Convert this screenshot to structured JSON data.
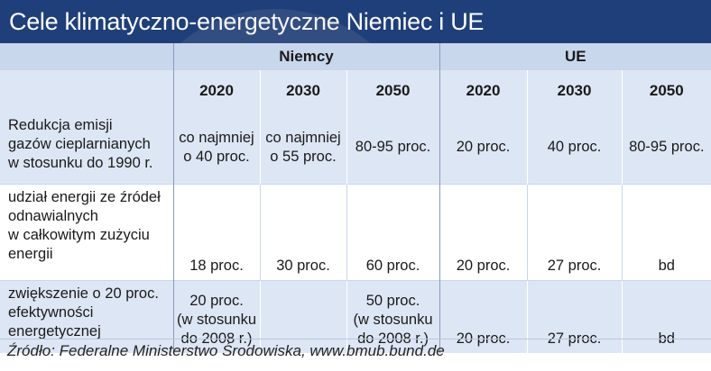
{
  "title": "Cele klimatyczno-energetyczne Niemiec i UE",
  "groups": [
    "Niemcy",
    "UE"
  ],
  "years": [
    "2020",
    "2030",
    "2050",
    "2020",
    "2030",
    "2050"
  ],
  "rows": [
    {
      "label": [
        "Redukcja emisji",
        "gazów cieplarnianych",
        "w stosunku do 1990 r."
      ],
      "values": [
        [
          "co najmniej",
          "o 40 proc."
        ],
        [
          "co najmniej",
          "o 55 proc."
        ],
        [
          "80-95 proc."
        ],
        [
          "20 proc."
        ],
        [
          "40 proc."
        ],
        [
          "80-95 proc."
        ]
      ]
    },
    {
      "label": [
        "udział energii ze źródeł",
        "odnawialnych",
        "w całkowitym zużyciu",
        "energii"
      ],
      "values": [
        [
          "18 proc."
        ],
        [
          "30 proc."
        ],
        [
          "60 proc."
        ],
        [
          "20 proc."
        ],
        [
          "27 proc."
        ],
        [
          "bd"
        ]
      ]
    },
    {
      "label": [
        "zwiększenie o 20 proc.",
        "efektywności",
        "energetycznej"
      ],
      "values": [
        [
          "20 proc.",
          "(w stosunku",
          "do 2008 r.)"
        ],
        [],
        [
          "50 proc.",
          "(w stosunku",
          "do 2008 r.)"
        ],
        [
          "20 proc."
        ],
        [
          "27 proc."
        ],
        [
          "bd"
        ]
      ]
    }
  ],
  "source": "Źródło: Federalne Ministerstwo Środowiska, www.bmub.bund.de"
}
